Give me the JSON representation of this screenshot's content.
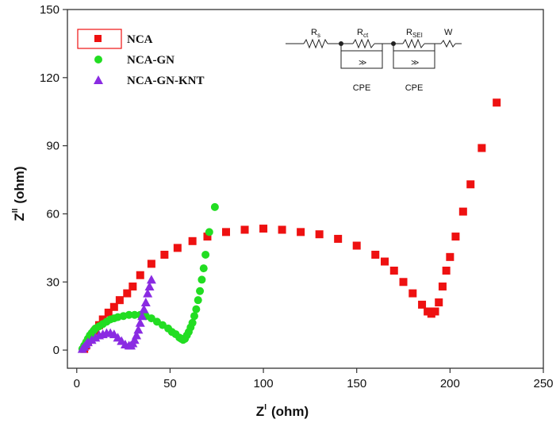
{
  "chart_data": {
    "type": "scatter",
    "xlabel": "Z' (ohm)",
    "ylabel": "Z'' (ohm)",
    "xlabel_main": "Z",
    "xlabel_sup": "I",
    "xlabel_unit": "(ohm)",
    "ylabel_main": "Z",
    "ylabel_sup": "II",
    "ylabel_unit": "(ohm)",
    "xlim": [
      -5,
      250
    ],
    "ylim": [
      -8,
      150
    ],
    "xticks": [
      0,
      50,
      100,
      150,
      200,
      250
    ],
    "yticks": [
      0,
      30,
      60,
      90,
      120,
      150
    ],
    "legend_position": "top-left",
    "series": [
      {
        "name": "NCA",
        "color": "#ee1111",
        "marker": "square",
        "points": [
          [
            4,
            0.5
          ],
          [
            5,
            2
          ],
          [
            6,
            3.5
          ],
          [
            8,
            6
          ],
          [
            10,
            8.5
          ],
          [
            12,
            11
          ],
          [
            14,
            13.5
          ],
          [
            17,
            16.5
          ],
          [
            20,
            19
          ],
          [
            23,
            22
          ],
          [
            27,
            25
          ],
          [
            30,
            28
          ],
          [
            34,
            33
          ],
          [
            40,
            38
          ],
          [
            47,
            42
          ],
          [
            54,
            45
          ],
          [
            62,
            48
          ],
          [
            70,
            50
          ],
          [
            80,
            52
          ],
          [
            90,
            53
          ],
          [
            100,
            53.5
          ],
          [
            110,
            53
          ],
          [
            120,
            52
          ],
          [
            130,
            51
          ],
          [
            140,
            49
          ],
          [
            150,
            46
          ],
          [
            160,
            42
          ],
          [
            165,
            39
          ],
          [
            170,
            35
          ],
          [
            175,
            30
          ],
          [
            180,
            25
          ],
          [
            185,
            20
          ],
          [
            188,
            17
          ],
          [
            190,
            16
          ],
          [
            192,
            17
          ],
          [
            194,
            21
          ],
          [
            196,
            28
          ],
          [
            198,
            35
          ],
          [
            200,
            41
          ],
          [
            203,
            50
          ],
          [
            207,
            61
          ],
          [
            211,
            73
          ],
          [
            217,
            89
          ],
          [
            225,
            109
          ]
        ]
      },
      {
        "name": "NCA-GN",
        "color": "#22dd22",
        "marker": "circle",
        "points": [
          [
            3,
            0.5
          ],
          [
            4,
            2
          ],
          [
            5,
            3.5
          ],
          [
            6,
            5
          ],
          [
            7,
            6.5
          ],
          [
            8,
            7.5
          ],
          [
            9,
            8.5
          ],
          [
            10,
            9.5
          ],
          [
            12,
            10.5
          ],
          [
            14,
            11.5
          ],
          [
            16,
            12.5
          ],
          [
            18,
            13.5
          ],
          [
            20,
            14
          ],
          [
            22,
            14.5
          ],
          [
            25,
            15
          ],
          [
            28,
            15.5
          ],
          [
            31,
            15.5
          ],
          [
            34,
            15.5
          ],
          [
            37,
            15
          ],
          [
            40,
            14
          ],
          [
            43,
            12.5
          ],
          [
            46,
            11
          ],
          [
            49,
            9.5
          ],
          [
            51,
            8
          ],
          [
            53,
            7
          ],
          [
            55,
            5.5
          ],
          [
            56,
            5
          ],
          [
            57,
            4.5
          ],
          [
            58,
            5
          ],
          [
            59,
            6.5
          ],
          [
            60,
            8
          ],
          [
            61,
            10
          ],
          [
            62,
            12
          ],
          [
            63,
            15
          ],
          [
            64,
            18
          ],
          [
            65,
            22
          ],
          [
            66,
            26
          ],
          [
            67,
            31
          ],
          [
            68,
            36
          ],
          [
            69,
            42
          ],
          [
            71,
            52
          ],
          [
            74,
            63
          ]
        ]
      },
      {
        "name": "NCA-GN-KNT",
        "color": "#8a2be2",
        "marker": "triangle",
        "points": [
          [
            3,
            0.5
          ],
          [
            4,
            1.5
          ],
          [
            5,
            2.5
          ],
          [
            6,
            3.5
          ],
          [
            8,
            4.5
          ],
          [
            10,
            5.5
          ],
          [
            12,
            6.5
          ],
          [
            14,
            7
          ],
          [
            16,
            7.5
          ],
          [
            18,
            7.5
          ],
          [
            20,
            7
          ],
          [
            22,
            5.5
          ],
          [
            24,
            4
          ],
          [
            26,
            2.5
          ],
          [
            28,
            2
          ],
          [
            29,
            2
          ],
          [
            30,
            3
          ],
          [
            31,
            4.5
          ],
          [
            32,
            6.5
          ],
          [
            33,
            9
          ],
          [
            34,
            12
          ],
          [
            35,
            15
          ],
          [
            36,
            18
          ],
          [
            37,
            21
          ],
          [
            38,
            25
          ],
          [
            39,
            28
          ],
          [
            40,
            31
          ]
        ]
      }
    ]
  },
  "circuit": {
    "labels": {
      "rs": "R",
      "rs_sub": "s",
      "rct": "R",
      "rct_sub": "ct",
      "rsei": "R",
      "rsei_sub": "SEI",
      "w": "W",
      "cpe1": "CPE",
      "cpe2": "CPE"
    }
  }
}
